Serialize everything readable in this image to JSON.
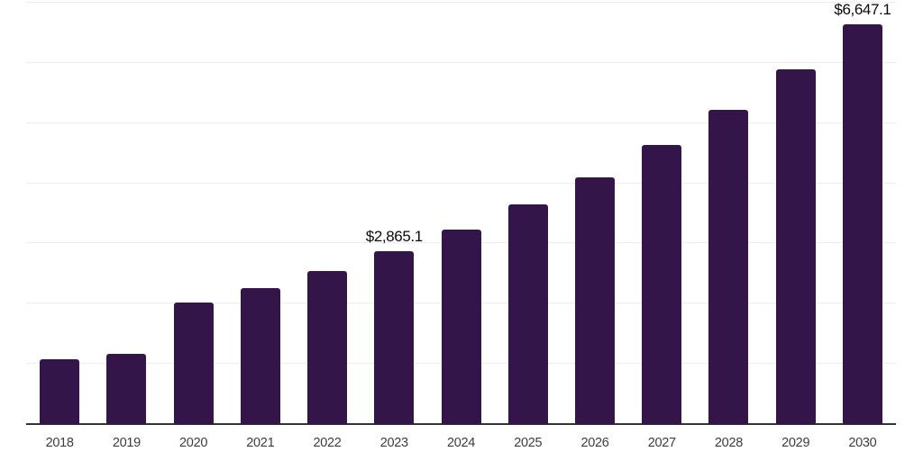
{
  "chart_data": {
    "type": "bar",
    "title": "",
    "xlabel": "",
    "ylabel": "",
    "categories": [
      "2018",
      "2019",
      "2020",
      "2021",
      "2022",
      "2023",
      "2024",
      "2025",
      "2026",
      "2027",
      "2028",
      "2029",
      "2030"
    ],
    "values": [
      1080,
      1170,
      2025,
      2260,
      2545,
      2865.1,
      3230,
      3645,
      4100,
      4630,
      5215,
      5890,
      6647.1
    ],
    "data_labels": {
      "2023": "$2,865.1",
      "2030": "$6,647.1"
    },
    "ylim": [
      0,
      7000
    ],
    "gridline_step": 1000,
    "grid": "horizontal-only",
    "y_tick_labels_visible": false,
    "legend_position": "none",
    "colors": {
      "bar": "#341549",
      "gridline": "#ededed",
      "axis_line": "#333333",
      "data_label_text": "#0a0a0a",
      "tick_label_text": "#3d3d3d",
      "background": "#ffffff"
    }
  }
}
